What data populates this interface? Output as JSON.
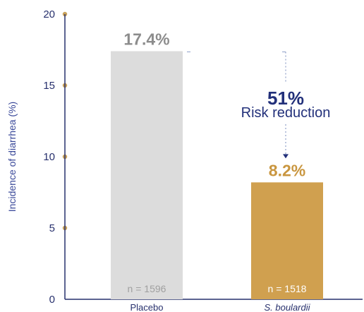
{
  "chart_data": {
    "type": "bar",
    "categories": [
      "Placebo",
      "S. boulardii"
    ],
    "values": [
      17.4,
      8.2
    ],
    "value_labels": [
      "17.4%",
      "8.2%"
    ],
    "n_labels": [
      "n = 1596",
      "n = 1518"
    ],
    "ylabel": "Incidence of diarrhea (%)",
    "ylim": [
      0,
      20
    ],
    "yticks": [
      0,
      5,
      10,
      15,
      20
    ],
    "grid": false,
    "annotation": {
      "value": "51%",
      "text": "Risk reduction"
    },
    "colors": {
      "placebo_bar": "#dcdcdc",
      "treatment_bar": "#d0a04f",
      "axis": "#27306d",
      "tick_dot": "#c9a25a",
      "placebo_label": "#8c8c8c",
      "treatment_label": "#c9963f",
      "annotation": "#22307a",
      "treatment_category": "#c9963f"
    }
  }
}
